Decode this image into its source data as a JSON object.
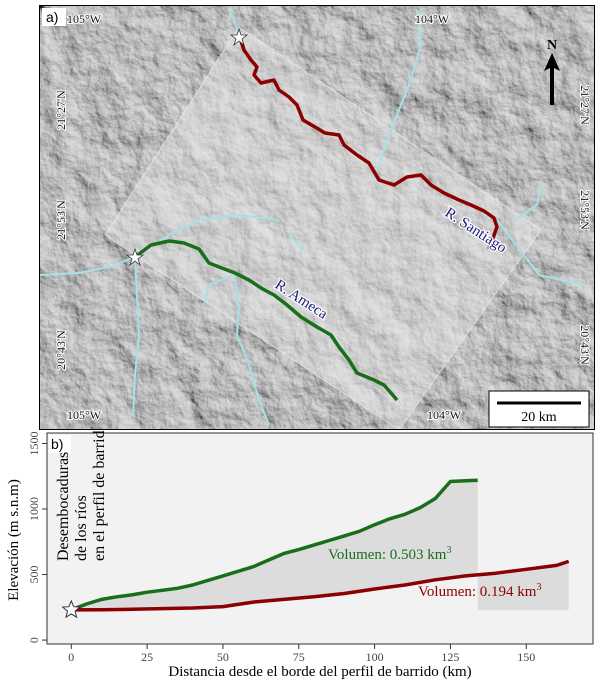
{
  "panel_a": {
    "label": "a)",
    "lon_labels": {
      "top_left": "105°W",
      "top_right": "104°W",
      "bottom_left": "105°W",
      "bottom_right": "104°W"
    },
    "lat_labels": {
      "upper": "21°27'N",
      "middle": "21°53'N",
      "lower": "20°43'N"
    },
    "north_label": "N",
    "scale_label": "20 km",
    "rivers": {
      "santiago": "R. Santiago",
      "ameca": "R. Ameca"
    },
    "colors": {
      "santiago": "#8b0000",
      "ameca": "#1a6e1a",
      "tributary": "#a8e0e8"
    }
  },
  "panel_b": {
    "label": "b)",
    "annotation_lines": [
      "Desembocaduras",
      "de los ríos",
      "en el perfil de barrido"
    ],
    "volume_green": "Volumen: 0.503 km",
    "volume_red": "Volumen: 0.194 km",
    "volume_exp": "3"
  },
  "chart_data": {
    "type": "line",
    "xlabel": "Distancia desde el borde del perfil de barrido (km)",
    "ylabel": "Elevación (m s.n.m)",
    "xlim": [
      -8,
      172
    ],
    "ylim": [
      -30,
      1580
    ],
    "x_ticks": [
      0,
      25,
      50,
      75,
      100,
      125,
      150
    ],
    "y_ticks": [
      0,
      500,
      1000,
      1500
    ],
    "grid": false,
    "series": [
      {
        "color": "#1a6e1a",
        "x": [
          0,
          5,
          10,
          15,
          20,
          25,
          30,
          35,
          40,
          45,
          50,
          55,
          60,
          65,
          70,
          75,
          80,
          85,
          90,
          95,
          100,
          105,
          110,
          115,
          120,
          125,
          130,
          134
        ],
        "y": [
          230,
          275,
          310,
          330,
          345,
          365,
          380,
          395,
          420,
          455,
          490,
          525,
          560,
          610,
          660,
          690,
          725,
          760,
          795,
          830,
          880,
          925,
          960,
          1010,
          1080,
          1210,
          1215,
          1220
        ]
      },
      {
        "color": "#8b0000",
        "x": [
          0,
          10,
          20,
          30,
          40,
          50,
          60,
          70,
          80,
          90,
          100,
          110,
          120,
          130,
          140,
          150,
          160,
          164
        ],
        "y": [
          230,
          232,
          235,
          240,
          245,
          255,
          290,
          310,
          330,
          355,
          390,
          420,
          460,
          490,
          510,
          540,
          570,
          600
        ]
      }
    ]
  }
}
